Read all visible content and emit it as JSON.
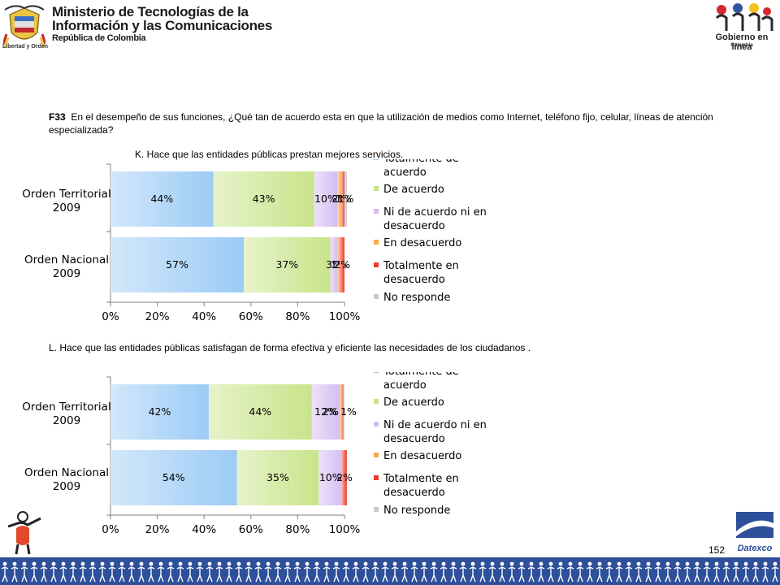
{
  "header": {
    "ministry_line1": "Ministerio de Tecnologías de la",
    "ministry_line2": "Información y las Comunicaciones",
    "ministry_line3": "República de Colombia",
    "motto": "Libertad y Orden",
    "gov_logo_text": "Gobierno en línea",
    "gov_logo_sub": "Colombia"
  },
  "question": {
    "code": "F33",
    "text": "En el desempeño de sus funciones,  ¿Qué  tan de acuerdo esta en que la utilización de medios como Internet, teléfono fijo, celular, líneas de atención especializada?"
  },
  "footer": {
    "page_number": "152",
    "datexco": "Datexco"
  },
  "colors": {
    "totalmente_de_acuerdo": "#9ccbf6",
    "de_acuerdo": "#c8e48a",
    "ni_de_acuerdo": "#d5bdf2",
    "en_desacuerdo": "#f9a94e",
    "totalmente_en_desacuerdo": "#ee3a2c",
    "no_responde": "#c8c8c8",
    "footer_band": "#2e4f9a"
  },
  "chart_data": [
    {
      "type": "bar",
      "orientation": "horizontal",
      "stacked": true,
      "title": "K. Hace que las entidades públicas prestan mejores servicios.",
      "categories": [
        "Orden Territorial 2009",
        "Orden Nacional 2009"
      ],
      "category_lines": [
        [
          "Orden Territorial",
          "2009"
        ],
        [
          "Orden Nacional",
          "2009"
        ]
      ],
      "xlim": [
        0,
        100
      ],
      "xticks": [
        "0%",
        "20%",
        "40%",
        "60%",
        "80%",
        "100%"
      ],
      "legend_position": "right",
      "series": [
        {
          "name": "Totalmente  de acuerdo",
          "legend_lines": [
            "Totalmente  de",
            "acuerdo"
          ],
          "color_key": "totalmente_de_acuerdo",
          "values": [
            44,
            57
          ],
          "labels": [
            "44%",
            "57%"
          ]
        },
        {
          "name": "De acuerdo",
          "legend_lines": [
            "De acuerdo"
          ],
          "color_key": "de_acuerdo",
          "values": [
            43,
            37
          ],
          "labels": [
            "43%",
            "37%"
          ]
        },
        {
          "name": "Ni de acuerdo  ni en desacuerdo",
          "legend_lines": [
            "Ni de acuerdo  ni en",
            "desacuerdo"
          ],
          "color_key": "ni_de_acuerdo",
          "values": [
            10,
            3
          ],
          "labels": [
            "10%",
            "3%"
          ]
        },
        {
          "name": " En desacuerdo",
          "legend_lines": [
            " En desacuerdo"
          ],
          "color_key": "en_desacuerdo",
          "values": [
            2,
            1
          ],
          "labels": [
            "2%",
            "1%"
          ]
        },
        {
          "name": "Totalmente en desacuerdo",
          "legend_lines": [
            "Totalmente en",
            "desacuerdo"
          ],
          "color_key": "totalmente_en_desacuerdo",
          "values": [
            1,
            2
          ],
          "labels": [
            "1%",
            "2%"
          ]
        },
        {
          "name": "No responde",
          "legend_lines": [
            "No responde"
          ],
          "color_key": "no_responde",
          "values": [
            1,
            0
          ],
          "labels": [
            "1%",
            ""
          ]
        }
      ]
    },
    {
      "type": "bar",
      "orientation": "horizontal",
      "stacked": true,
      "title": "L. Hace que las entidades públicas satisfagan de forma efectiva y eficiente las necesidades de los ciudadanos .",
      "categories": [
        "Orden Territorial 2009",
        "Orden Nacional 2009"
      ],
      "category_lines": [
        [
          "Orden Territorial",
          "2009"
        ],
        [
          "Orden Nacional",
          "2009"
        ]
      ],
      "xlim": [
        0,
        100
      ],
      "xticks": [
        "0%",
        "20%",
        "40%",
        "60%",
        "80%",
        "100%"
      ],
      "legend_position": "right",
      "series": [
        {
          "name": "Totalmente  de acuerdo",
          "legend_lines": [
            "Totalmente  de",
            "acuerdo"
          ],
          "color_key": "totalmente_de_acuerdo",
          "values": [
            42,
            54
          ],
          "labels": [
            "42%",
            "54%"
          ]
        },
        {
          "name": "De acuerdo",
          "legend_lines": [
            "De acuerdo"
          ],
          "color_key": "de_acuerdo",
          "values": [
            44,
            35
          ],
          "labels": [
            "44%",
            "35%"
          ]
        },
        {
          "name": "Ni de acuerdo  ni en desacuerdo",
          "legend_lines": [
            "Ni de acuerdo  ni en",
            "desacuerdo"
          ],
          "color_key": "ni_de_acuerdo",
          "values": [
            12,
            10
          ],
          "labels": [
            "12%",
            "10%"
          ]
        },
        {
          "name": " En desacuerdo",
          "legend_lines": [
            " En desacuerdo"
          ],
          "color_key": "en_desacuerdo",
          "values": [
            1,
            0
          ],
          "labels": [
            "",
            ""
          ]
        },
        {
          "name": "Totalmente en desacuerdo",
          "legend_lines": [
            "Totalmente en",
            "desacuerdo"
          ],
          "color_key": "totalmente_en_desacuerdo",
          "values": [
            0.5,
            2
          ],
          "labels": [
            "",
            "2%"
          ]
        },
        {
          "name": "No responde",
          "legend_lines": [
            "No responde"
          ],
          "color_key": "no_responde",
          "values": [
            0.5,
            0
          ],
          "labels": [
            "",
            ""
          ]
        }
      ],
      "extra_labels": [
        [
          "2%",
          "1%"
        ],
        []
      ]
    }
  ]
}
